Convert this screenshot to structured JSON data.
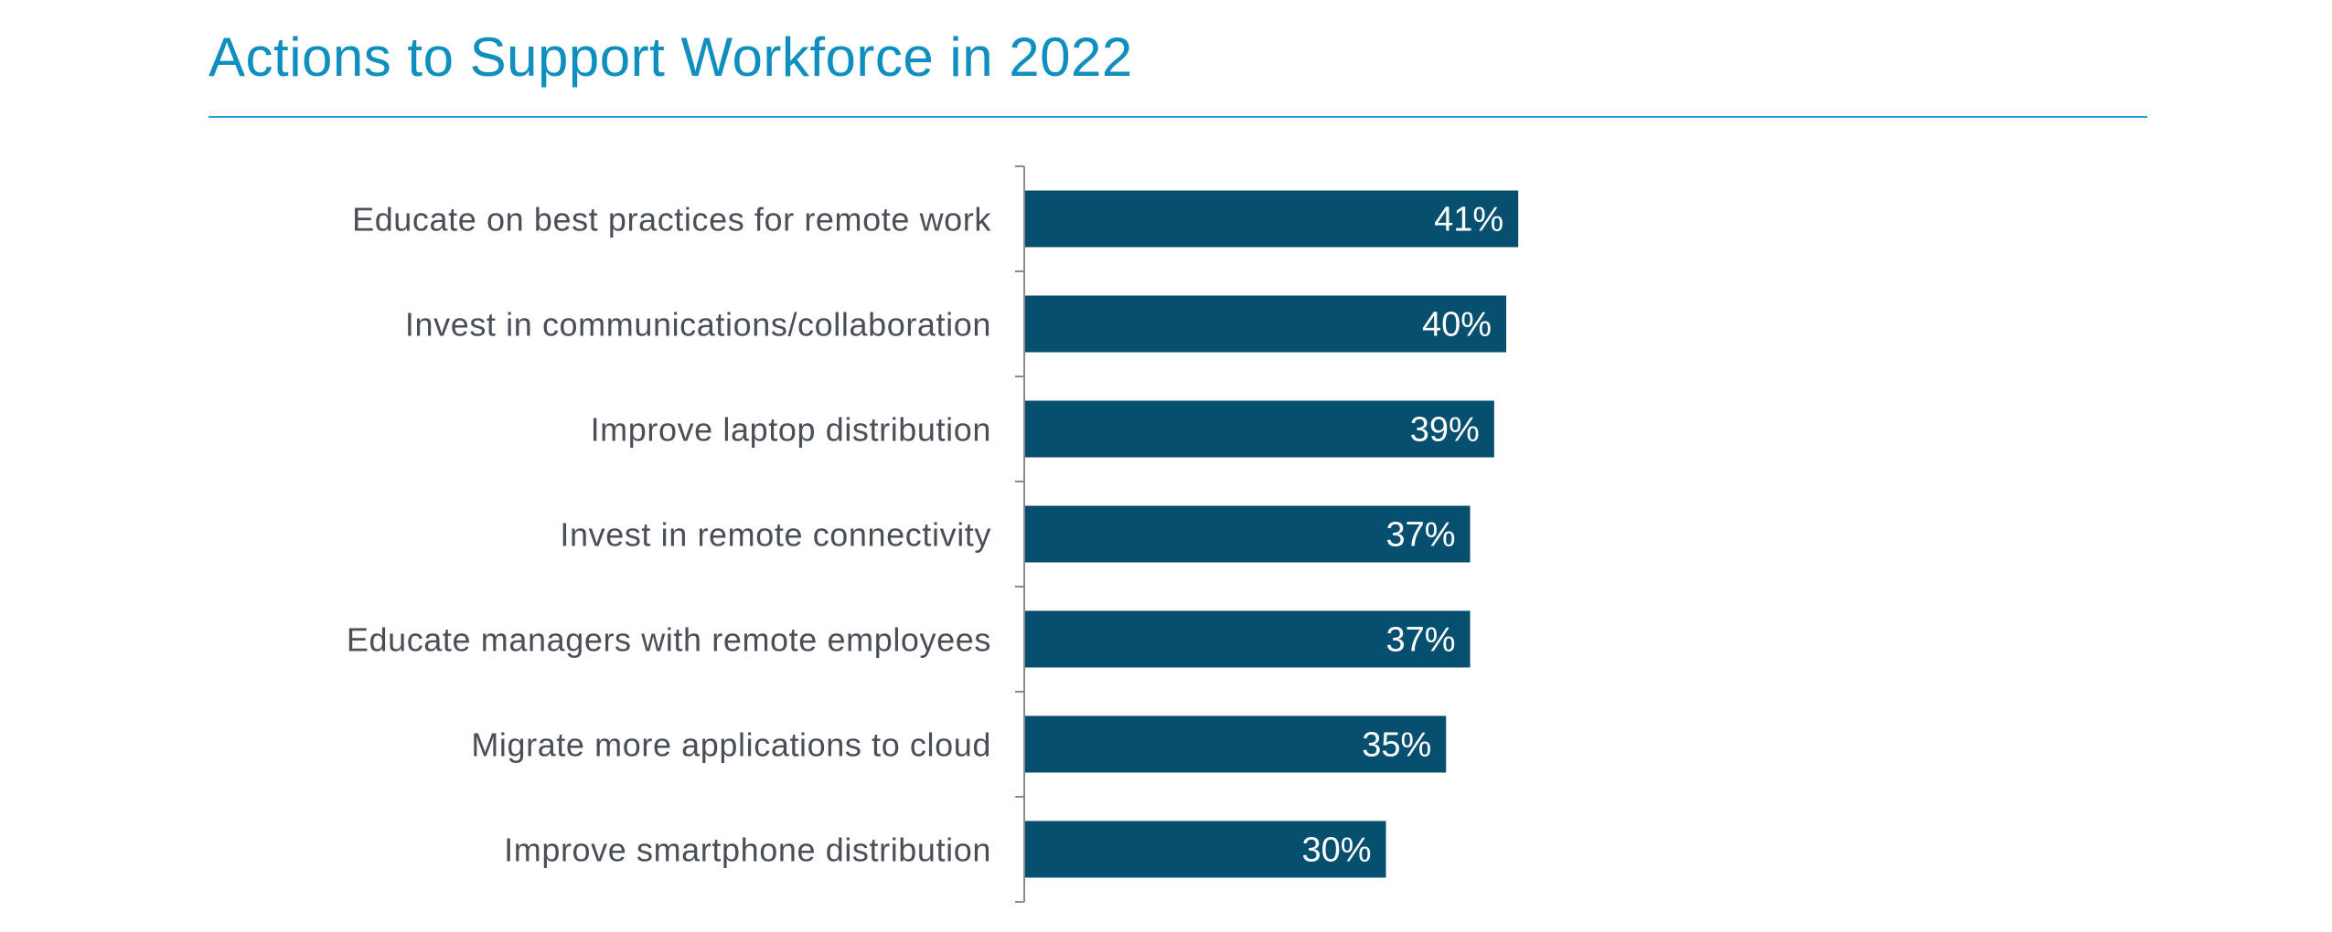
{
  "chart_data": {
    "type": "bar",
    "orientation": "horizontal",
    "title": "Actions to Support Workforce in 2022",
    "categories": [
      "Educate on best practices for remote work",
      "Invest in communications/collaboration",
      "Improve laptop distribution",
      "Invest in remote connectivity",
      "Educate managers with remote employees",
      "Migrate more applications to cloud",
      "Improve smartphone distribution"
    ],
    "values": [
      41,
      40,
      39,
      37,
      37,
      35,
      30
    ],
    "value_labels": [
      "41%",
      "40%",
      "39%",
      "37%",
      "37%",
      "35%",
      "30%"
    ],
    "xlim": [
      0,
      100
    ],
    "grid": false,
    "legend": "none",
    "colors": {
      "bar": "#064f6e",
      "bar_label": "#ffffff",
      "category_label": "#4a4f57",
      "axis": "#8a8a8a",
      "title": "#0f8fbf"
    }
  }
}
